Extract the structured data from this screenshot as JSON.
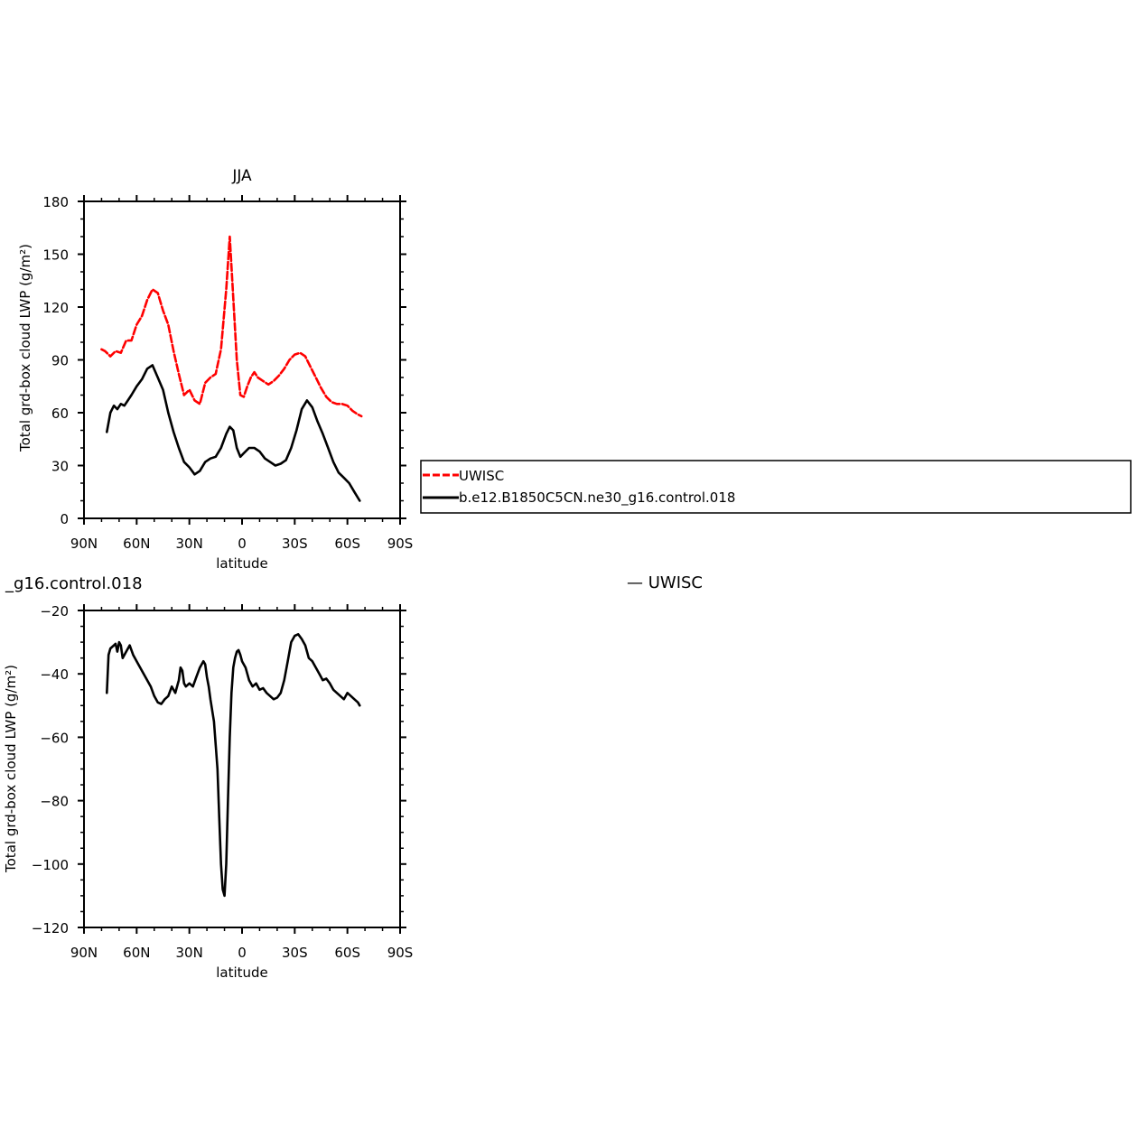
{
  "chart_data": [
    {
      "type": "line",
      "title": "JJA",
      "xlabel": "latitude",
      "ylabel": "Total grd-box cloud LWP (g/m²)",
      "xlim": [
        90,
        -90
      ],
      "ylim": [
        0,
        180
      ],
      "x_ticks": [
        90,
        60,
        30,
        0,
        -30,
        -60,
        -90
      ],
      "x_tick_labels": [
        "90N",
        "60N",
        "30N",
        "0",
        "30S",
        "60S",
        "90S"
      ],
      "y_ticks": [
        0,
        30,
        60,
        90,
        120,
        150,
        180
      ],
      "y_tick_labels": [
        "0",
        "30",
        "60",
        "90",
        "120",
        "150",
        "180"
      ],
      "legend_position": "right, outside plot",
      "series": [
        {
          "name": "UWISC",
          "color": "#ff0000",
          "style": "dashed",
          "x": [
            80,
            78,
            75,
            72,
            69,
            66,
            63,
            60,
            57,
            54,
            51,
            48,
            45,
            42,
            39,
            36,
            33,
            30,
            27,
            24,
            21,
            18,
            15,
            12,
            9,
            7,
            5,
            3,
            1,
            -1,
            -3,
            -5,
            -7,
            -9,
            -12,
            -15,
            -18,
            -21,
            -24,
            -27,
            -30,
            -33,
            -36,
            -39,
            -42,
            -45,
            -48,
            -51,
            -54,
            -57,
            -60,
            -63,
            -66,
            -68
          ],
          "values": [
            96,
            95,
            92,
            95,
            94,
            101,
            101,
            110,
            115,
            124,
            130,
            128,
            118,
            110,
            95,
            82,
            70,
            73,
            67,
            65,
            77,
            80,
            82,
            96,
            130,
            160,
            125,
            90,
            70,
            69,
            75,
            80,
            83,
            80,
            78,
            76,
            78,
            81,
            85,
            90,
            93,
            94,
            92,
            86,
            80,
            74,
            69,
            66,
            65,
            65,
            64,
            61,
            59,
            58
          ]
        },
        {
          "name": "b.e12.B1850C5CN.ne30_g16.control.018",
          "color": "#000000",
          "style": "solid",
          "x": [
            77,
            75,
            73,
            71,
            69,
            67,
            65,
            63,
            60,
            57,
            54,
            51,
            48,
            45,
            42,
            39,
            36,
            33,
            30,
            27,
            24,
            21,
            18,
            15,
            12,
            9,
            7,
            5,
            3,
            1,
            -1,
            -4,
            -7,
            -10,
            -13,
            -16,
            -19,
            -22,
            -25,
            -28,
            -31,
            -34,
            -37,
            -40,
            -43,
            -46,
            -49,
            -52,
            -55,
            -58,
            -61,
            -64,
            -67
          ],
          "values": [
            49,
            60,
            64,
            62,
            65,
            64,
            67,
            70,
            75,
            79,
            85,
            87,
            80,
            73,
            60,
            49,
            40,
            32,
            29,
            25,
            27,
            32,
            34,
            35,
            40,
            48,
            52,
            50,
            40,
            35,
            37,
            40,
            40,
            38,
            34,
            32,
            30,
            31,
            33,
            40,
            50,
            62,
            67,
            63,
            55,
            48,
            40,
            32,
            26,
            23,
            20,
            15,
            10
          ]
        }
      ]
    },
    {
      "type": "line",
      "title": "",
      "xlabel": "latitude",
      "ylabel": "Total grd-box cloud LWP (g/m²)",
      "xlim": [
        90,
        -90
      ],
      "ylim": [
        -120,
        -20
      ],
      "x_ticks": [
        90,
        60,
        30,
        0,
        -30,
        -60,
        -90
      ],
      "x_tick_labels": [
        "90N",
        "60N",
        "30N",
        "0",
        "30S",
        "60S",
        "90S"
      ],
      "y_ticks": [
        -120,
        -100,
        -80,
        -60,
        -40,
        -20
      ],
      "y_tick_labels": [
        "−120",
        "−100",
        "−80",
        "−60",
        "−40",
        "−20"
      ],
      "series": [
        {
          "color": "#000000",
          "style": "solid",
          "x": [
            77,
            76,
            75,
            73,
            72,
            71,
            70,
            69,
            68,
            66,
            64,
            62,
            60,
            58,
            56,
            54,
            52,
            50,
            48,
            46,
            44,
            42,
            40,
            38,
            36,
            35,
            34,
            33,
            32,
            31,
            30,
            28,
            26,
            24,
            22,
            21,
            20,
            19,
            18,
            16,
            14,
            13,
            12,
            11,
            10,
            9,
            8,
            7,
            6,
            5,
            4,
            3,
            2,
            1,
            0,
            -2,
            -4,
            -6,
            -8,
            -10,
            -12,
            -14,
            -16,
            -18,
            -20,
            -22,
            -24,
            -26,
            -28,
            -30,
            -32,
            -34,
            -36,
            -38,
            -40,
            -42,
            -44,
            -46,
            -48,
            -50,
            -52,
            -54,
            -56,
            -58,
            -60,
            -62,
            -64,
            -66,
            -67
          ],
          "values": [
            -46,
            -34,
            -32,
            -31,
            -30.5,
            -33,
            -30,
            -31,
            -35,
            -33,
            -31,
            -34,
            -36,
            -38,
            -40,
            -42,
            -44,
            -47,
            -49,
            -49.5,
            -48,
            -47,
            -44,
            -46,
            -42,
            -38,
            -39,
            -43,
            -44,
            -43.5,
            -43,
            -44,
            -41,
            -38,
            -36,
            -37,
            -41,
            -44,
            -48,
            -55,
            -70,
            -85,
            -100,
            -108,
            -110,
            -100,
            -80,
            -60,
            -46,
            -38,
            -35,
            -33,
            -32.5,
            -34,
            -36,
            -38,
            -42,
            -44,
            -43,
            -45,
            -44.5,
            -46,
            -47,
            -48,
            -47.5,
            -46,
            -42,
            -36,
            -30,
            -28,
            -27.5,
            -29,
            -31,
            -35,
            -36,
            -38,
            -40,
            -42,
            -41.5,
            -43,
            -45,
            -46,
            -47,
            -48,
            -46,
            -47,
            -48,
            -49,
            -50
          ]
        }
      ]
    }
  ],
  "texts": {
    "top_ylabel": "Total grd-box cloud LWP (g/m²)",
    "bottom_ylabel": "Total grd-box cloud LWP (g/m²)",
    "stray_left": "_g16.control.018",
    "stray_right": "— UWISC"
  },
  "legend": [
    {
      "label": "UWISC",
      "color": "#ff0000",
      "style": "dashed"
    },
    {
      "label": "b.e12.B1850C5CN.ne30_g16.control.018",
      "color": "#000000",
      "style": "solid"
    }
  ]
}
